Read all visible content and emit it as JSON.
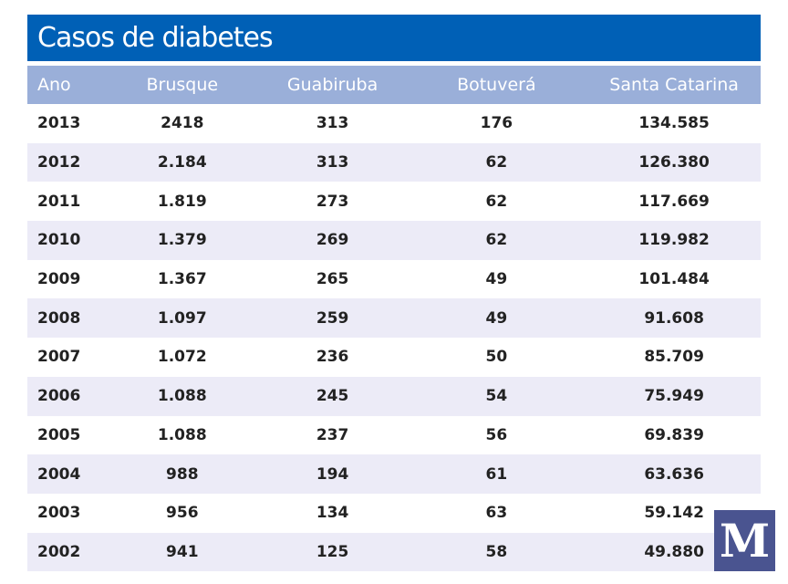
{
  "title": "Casos de diabetes",
  "headers": [
    "Ano",
    "Brusque",
    "Guabiruba",
    "Botuverá",
    "Santa Catarina"
  ],
  "rows": [
    [
      "2013",
      "2418",
      "313",
      "176",
      "134.585"
    ],
    [
      "2012",
      "2.184",
      "313",
      "62",
      "126.380"
    ],
    [
      "2011",
      "1.819",
      "273",
      "62",
      "117.669"
    ],
    [
      "2010",
      "1.379",
      "269",
      "62",
      "119.982"
    ],
    [
      "2009",
      "1.367",
      "265",
      "49",
      "101.484"
    ],
    [
      "2008",
      "1.097",
      "259",
      "49",
      "91.608"
    ],
    [
      "2007",
      "1.072",
      "236",
      "50",
      "85.709"
    ],
    [
      "2006",
      "1.088",
      "245",
      "54",
      "75.949"
    ],
    [
      "2005",
      "1.088",
      "237",
      "56",
      "69.839"
    ],
    [
      "2004",
      "988",
      "194",
      "61",
      "63.636"
    ],
    [
      "2003",
      "956",
      "134",
      "63",
      "59.142"
    ],
    [
      "2002",
      "941",
      "125",
      "58",
      "49.880"
    ]
  ],
  "logo": "M",
  "colors": {
    "title_bg": "#0060b6",
    "header_bg": "#9aafd9",
    "stripe": "#ecebf7",
    "logo_bg": "#4a5490"
  }
}
